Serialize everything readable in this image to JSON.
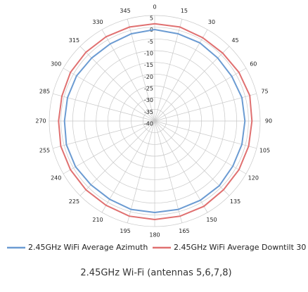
{
  "chart_data": {
    "type": "polar",
    "theta": [
      0,
      15,
      30,
      45,
      60,
      75,
      90,
      105,
      120,
      135,
      150,
      165,
      180,
      195,
      210,
      225,
      240,
      255,
      270,
      285,
      300,
      315,
      330,
      345
    ],
    "rlim": [
      -40,
      5
    ],
    "rticks": [
      -40,
      -35,
      -30,
      -25,
      -20,
      -15,
      -10,
      -5,
      0,
      5
    ],
    "grid": true,
    "series": [
      {
        "name": "2.45GHz WiFi Average Azimuth",
        "color": "#6b9bd2",
        "values": [
          -1,
          -1.5,
          -1.5,
          -2,
          -2,
          -1.5,
          -1.5,
          -1.5,
          -1.5,
          -1,
          -1,
          -1,
          -1,
          -1,
          -1.5,
          -1.5,
          -1,
          -1,
          -1.5,
          -1.5,
          -1.5,
          -2,
          -2,
          -1.5
        ]
      },
      {
        "name": "2.45GHz WiFi Average Downtilt 30",
        "color": "#e07070",
        "values": [
          1.5,
          1.5,
          1,
          1,
          1.5,
          2,
          1.5,
          1.5,
          1.5,
          1.5,
          2,
          2,
          2,
          2,
          1.5,
          1.5,
          1.5,
          1.5,
          1,
          1,
          1.5,
          1.5,
          1.5,
          1.5
        ]
      }
    ],
    "caption": "2.45GHz Wi-Fi (antennas 5,6,7,8)"
  }
}
